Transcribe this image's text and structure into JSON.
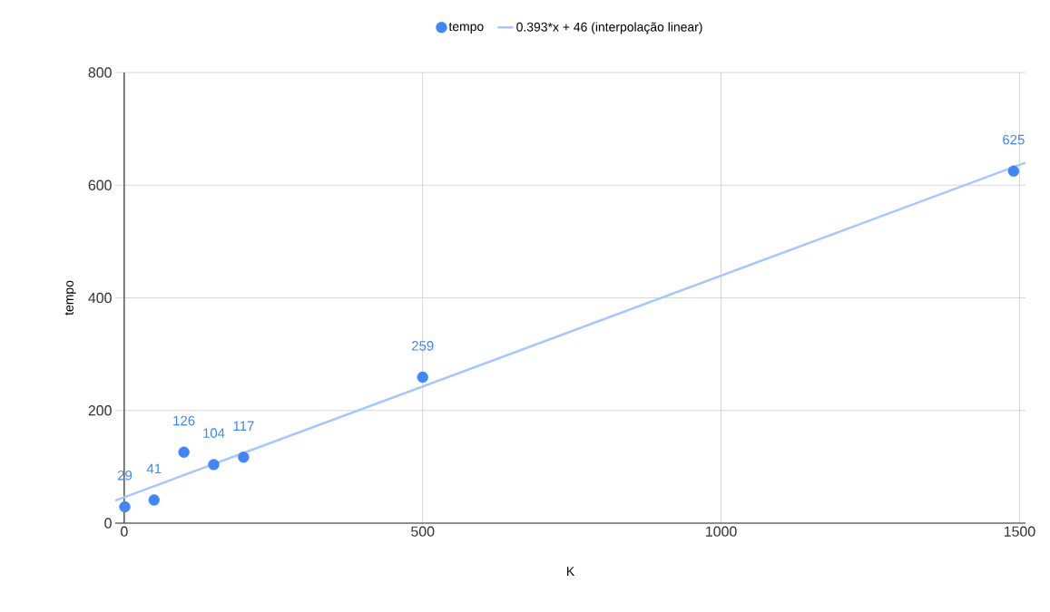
{
  "chart_data": {
    "type": "scatter",
    "xlabel": "K",
    "ylabel": "tempo",
    "series": [
      {
        "name": "tempo",
        "color": "#4285f4",
        "data_labels": true,
        "x": [
          1,
          50,
          100,
          150,
          200,
          500,
          1490
        ],
        "values": [
          29,
          41,
          126,
          104,
          117,
          259,
          625
        ]
      },
      {
        "name": "0.393*x + 46 (interpolação linear)",
        "type": "line",
        "color": "#a8c7fa",
        "line_style": "solid",
        "marker": "none",
        "x": [
          -15,
          1510
        ],
        "values": [
          40,
          640
        ]
      }
    ],
    "xlim": [
      -15,
      1510
    ],
    "ylim": [
      0,
      800
    ],
    "xticks": [
      0,
      500,
      1000,
      1500
    ],
    "yticks": [
      0,
      200,
      400,
      600,
      800
    ],
    "grid": true,
    "legend": "top",
    "marker": "circle"
  }
}
